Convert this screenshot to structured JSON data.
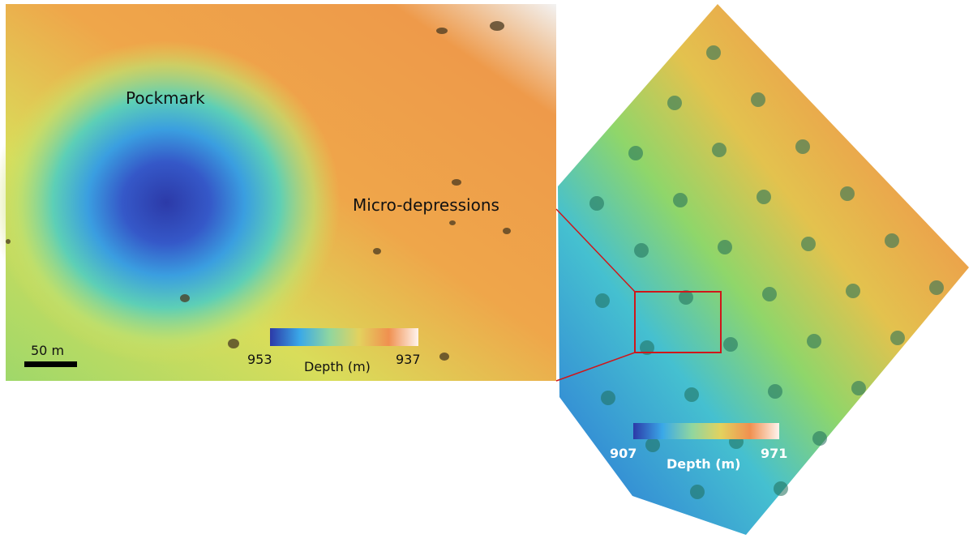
{
  "left_panel": {
    "labels": [
      "Pockmark",
      "Micro-depressions"
    ],
    "scale_bar": "50 m",
    "colorbar": {
      "min_label": 953,
      "title": "Depth (m)",
      "max_label": 937
    }
  },
  "right_panel": {
    "colorbar": {
      "min_label": 907,
      "title": "Depth (m)",
      "max_label": 971
    }
  }
}
